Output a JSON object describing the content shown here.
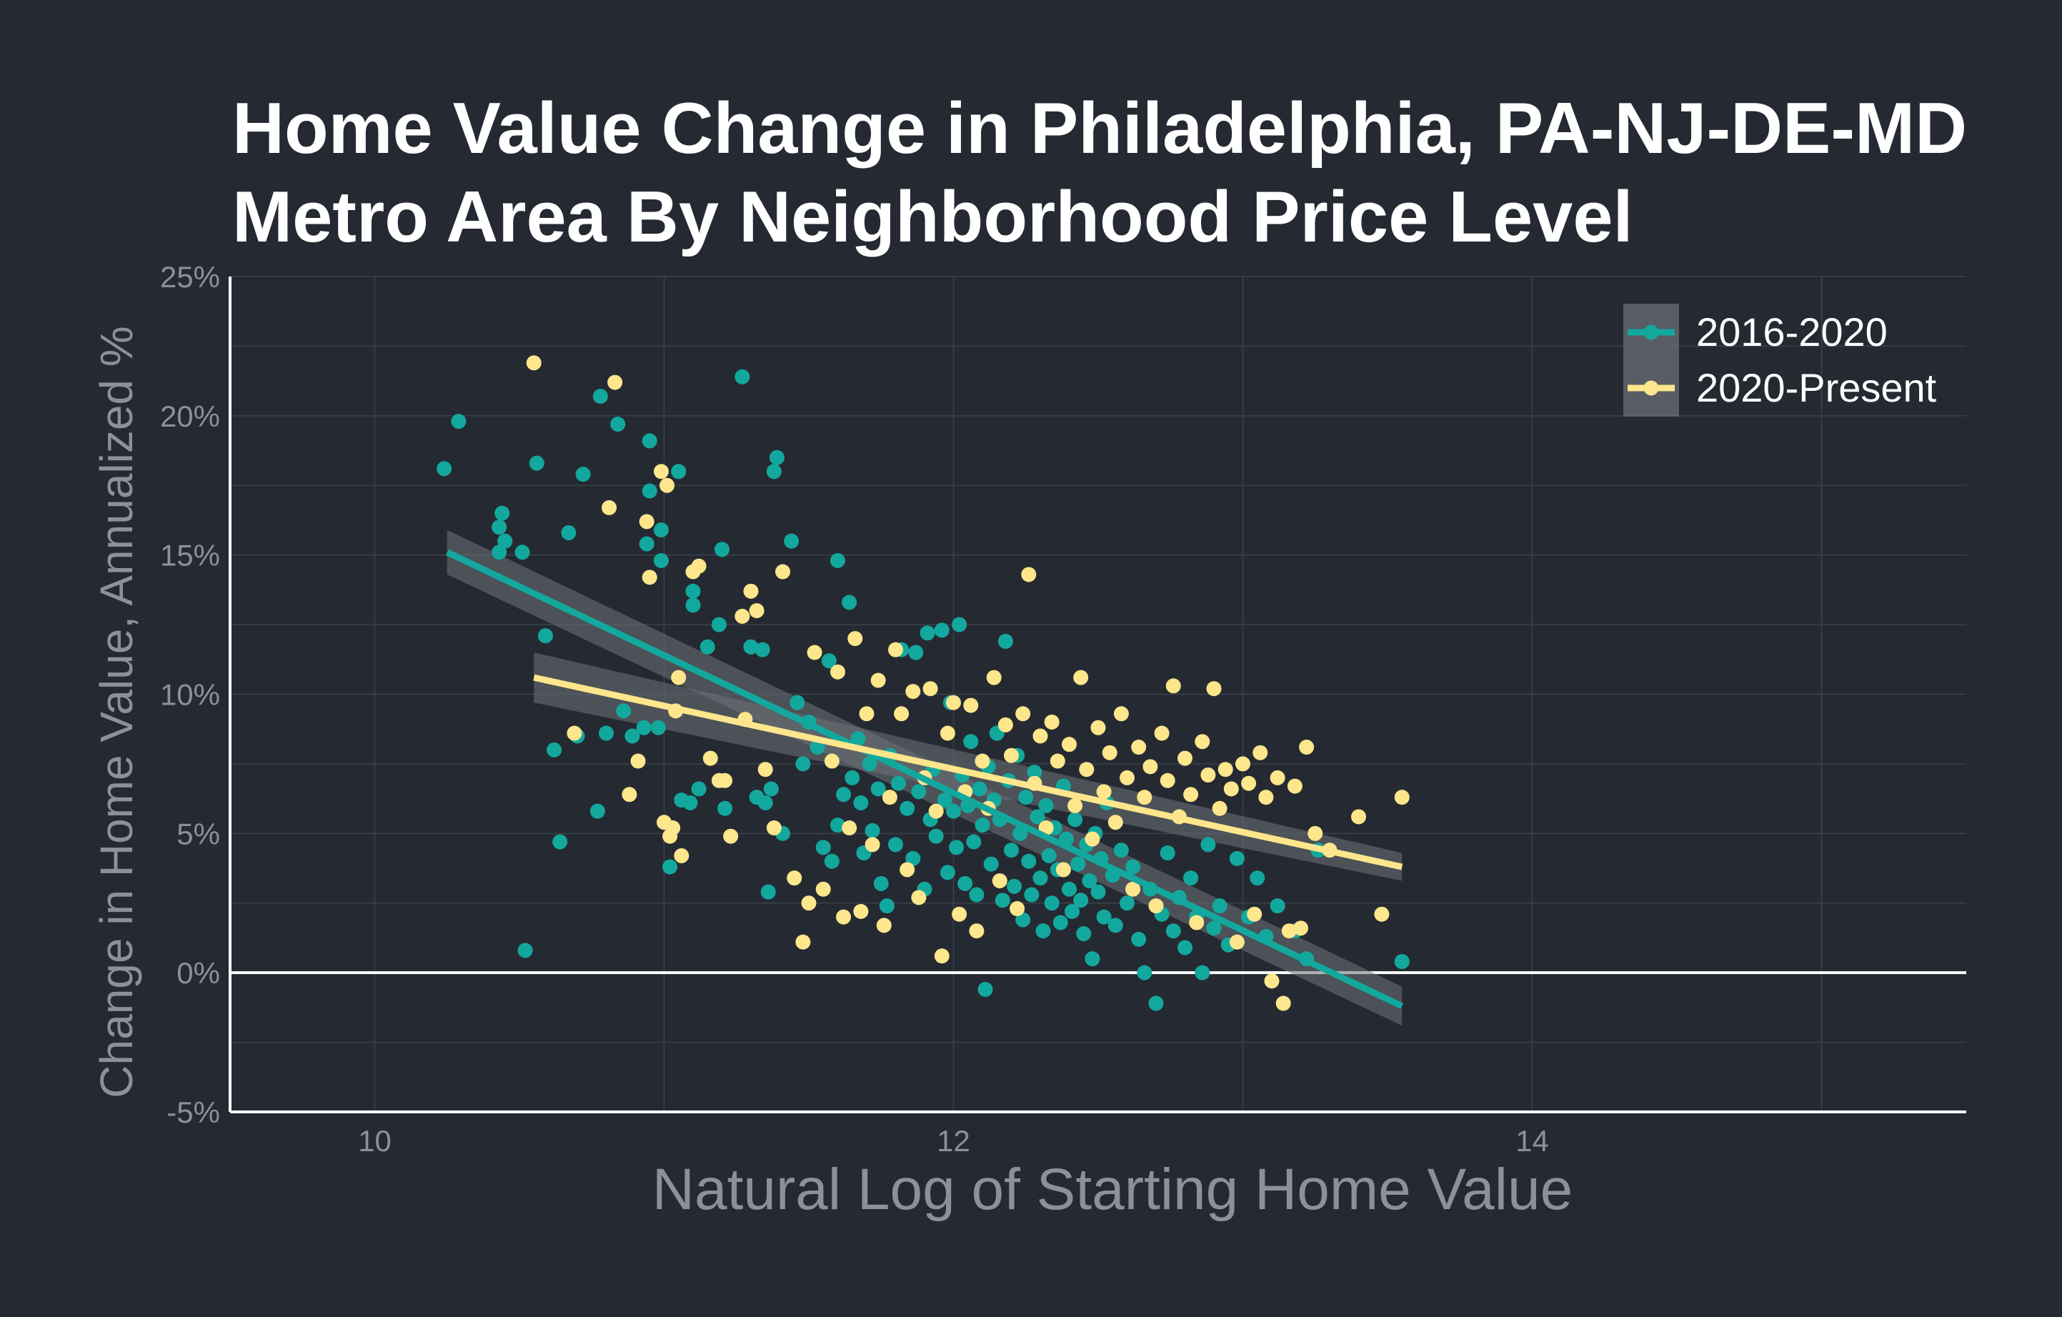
{
  "chart_data": {
    "type": "scatter",
    "title": [
      "Home Value Change in Philadelphia, PA-NJ-DE-MD",
      "Metro Area By Neighborhood Price Level"
    ],
    "xlabel": "Natural Log of Starting Home Value",
    "ylabel": "Change in Home Value, Annualized %",
    "xlim": [
      9.5,
      15.5
    ],
    "ylim": [
      -5,
      25
    ],
    "x_ticks": [
      10,
      12,
      14
    ],
    "x_tick_labels": [
      "10",
      "12",
      "14"
    ],
    "y_ticks": [
      -5,
      0,
      5,
      10,
      15,
      20,
      25
    ],
    "y_tick_labels": [
      "-5%",
      "0%",
      "5%",
      "10%",
      "15%",
      "20%",
      "25%"
    ],
    "grid": true,
    "legend_position": "top-right",
    "colors": {
      "background": "#252a32",
      "grid": "#3b414b",
      "axis": "#ffffff",
      "muted_text": "#8c9099",
      "band": "#6e7279"
    },
    "series": [
      {
        "name": "2016-2020",
        "color": "#13a89e",
        "trend": {
          "x": [
            10.25,
            13.55
          ],
          "y": [
            15.1,
            -1.2
          ],
          "ci_half_width": [
            0.8,
            0.7
          ]
        },
        "points": [
          [
            10.24,
            18.1
          ],
          [
            10.29,
            19.8
          ],
          [
            10.43,
            15.1
          ],
          [
            10.43,
            16.0
          ],
          [
            10.44,
            16.5
          ],
          [
            10.45,
            15.5
          ],
          [
            10.51,
            15.1
          ],
          [
            10.56,
            18.3
          ],
          [
            10.52,
            0.8
          ],
          [
            10.59,
            12.1
          ],
          [
            10.62,
            8.0
          ],
          [
            10.64,
            4.7
          ],
          [
            10.67,
            15.8
          ],
          [
            10.7,
            8.5
          ],
          [
            10.72,
            17.9
          ],
          [
            10.77,
            5.8
          ],
          [
            10.78,
            20.7
          ],
          [
            10.8,
            8.6
          ],
          [
            10.84,
            19.7
          ],
          [
            10.86,
            9.4
          ],
          [
            10.89,
            8.5
          ],
          [
            10.93,
            8.8
          ],
          [
            10.94,
            15.4
          ],
          [
            10.95,
            19.1
          ],
          [
            10.95,
            17.3
          ],
          [
            10.98,
            8.8
          ],
          [
            10.99,
            15.9
          ],
          [
            10.99,
            14.8
          ],
          [
            11.02,
            3.8
          ],
          [
            11.05,
            18.0
          ],
          [
            11.06,
            6.2
          ],
          [
            11.09,
            6.1
          ],
          [
            11.1,
            13.7
          ],
          [
            11.1,
            13.2
          ],
          [
            11.12,
            6.6
          ],
          [
            11.15,
            11.7
          ],
          [
            11.19,
            12.5
          ],
          [
            11.2,
            15.2
          ],
          [
            11.21,
            5.9
          ],
          [
            11.27,
            21.4
          ],
          [
            11.3,
            11.7
          ],
          [
            11.32,
            6.3
          ],
          [
            11.34,
            11.6
          ],
          [
            11.35,
            6.1
          ],
          [
            11.36,
            2.9
          ],
          [
            11.37,
            6.6
          ],
          [
            11.38,
            18.0
          ],
          [
            11.39,
            18.5
          ],
          [
            11.41,
            5.0
          ],
          [
            11.44,
            15.5
          ],
          [
            11.46,
            9.7
          ],
          [
            11.48,
            7.5
          ],
          [
            11.5,
            9.0
          ],
          [
            11.53,
            8.1
          ],
          [
            11.55,
            4.5
          ],
          [
            11.57,
            11.2
          ],
          [
            11.58,
            4.0
          ],
          [
            11.6,
            5.3
          ],
          [
            11.6,
            14.8
          ],
          [
            11.62,
            6.4
          ],
          [
            11.64,
            13.3
          ],
          [
            11.65,
            7.0
          ],
          [
            11.67,
            8.4
          ],
          [
            11.68,
            6.1
          ],
          [
            11.69,
            4.3
          ],
          [
            11.71,
            7.5
          ],
          [
            11.72,
            5.1
          ],
          [
            11.74,
            6.6
          ],
          [
            11.75,
            3.2
          ],
          [
            11.77,
            2.4
          ],
          [
            11.78,
            7.8
          ],
          [
            11.8,
            4.6
          ],
          [
            11.81,
            6.8
          ],
          [
            11.82,
            11.6
          ],
          [
            11.84,
            5.9
          ],
          [
            11.86,
            4.1
          ],
          [
            11.87,
            11.5
          ],
          [
            11.88,
            6.5
          ],
          [
            11.9,
            3.0
          ],
          [
            11.91,
            12.2
          ],
          [
            11.92,
            5.5
          ],
          [
            11.93,
            7.3
          ],
          [
            11.94,
            4.9
          ],
          [
            11.96,
            12.3
          ],
          [
            11.97,
            6.2
          ],
          [
            11.98,
            3.6
          ],
          [
            11.99,
            9.7
          ],
          [
            12.0,
            5.8
          ],
          [
            12.01,
            4.5
          ],
          [
            12.02,
            12.5
          ],
          [
            12.03,
            7.1
          ],
          [
            12.04,
            3.2
          ],
          [
            12.05,
            6.0
          ],
          [
            12.06,
            8.3
          ],
          [
            12.07,
            4.7
          ],
          [
            12.08,
            2.8
          ],
          [
            12.09,
            6.6
          ],
          [
            12.1,
            5.3
          ],
          [
            12.11,
            -0.6
          ],
          [
            12.12,
            7.4
          ],
          [
            12.13,
            3.9
          ],
          [
            12.14,
            6.2
          ],
          [
            12.15,
            8.6
          ],
          [
            12.16,
            5.5
          ],
          [
            12.17,
            2.6
          ],
          [
            12.18,
            11.9
          ],
          [
            12.19,
            6.9
          ],
          [
            12.2,
            4.4
          ],
          [
            12.21,
            3.1
          ],
          [
            12.22,
            7.8
          ],
          [
            12.23,
            5.0
          ],
          [
            12.24,
            1.9
          ],
          [
            12.25,
            6.3
          ],
          [
            12.26,
            4.0
          ],
          [
            12.27,
            2.8
          ],
          [
            12.28,
            7.2
          ],
          [
            12.29,
            5.6
          ],
          [
            12.3,
            3.4
          ],
          [
            12.31,
            1.5
          ],
          [
            12.32,
            6.0
          ],
          [
            12.33,
            4.2
          ],
          [
            12.34,
            2.5
          ],
          [
            12.35,
            5.2
          ],
          [
            12.36,
            3.7
          ],
          [
            12.37,
            1.8
          ],
          [
            12.38,
            6.7
          ],
          [
            12.39,
            4.8
          ],
          [
            12.4,
            3.0
          ],
          [
            12.41,
            2.2
          ],
          [
            12.42,
            5.5
          ],
          [
            12.43,
            3.9
          ],
          [
            12.44,
            2.6
          ],
          [
            12.45,
            1.4
          ],
          [
            12.46,
            4.6
          ],
          [
            12.47,
            3.3
          ],
          [
            12.48,
            0.5
          ],
          [
            12.49,
            5.0
          ],
          [
            12.5,
            2.9
          ],
          [
            12.51,
            4.1
          ],
          [
            12.52,
            2.0
          ],
          [
            12.53,
            6.1
          ],
          [
            12.55,
            3.5
          ],
          [
            12.56,
            1.7
          ],
          [
            12.58,
            4.4
          ],
          [
            12.6,
            2.5
          ],
          [
            12.62,
            3.8
          ],
          [
            12.64,
            1.2
          ],
          [
            12.66,
            0.0
          ],
          [
            12.68,
            3.0
          ],
          [
            12.7,
            -1.1
          ],
          [
            12.72,
            2.1
          ],
          [
            12.74,
            4.3
          ],
          [
            12.76,
            1.5
          ],
          [
            12.78,
            2.7
          ],
          [
            12.8,
            0.9
          ],
          [
            12.82,
            3.4
          ],
          [
            12.84,
            2.0
          ],
          [
            12.86,
            0.0
          ],
          [
            12.88,
            4.6
          ],
          [
            12.9,
            1.6
          ],
          [
            12.92,
            2.4
          ],
          [
            12.95,
            1.0
          ],
          [
            12.98,
            4.1
          ],
          [
            13.02,
            2.0
          ],
          [
            13.05,
            3.4
          ],
          [
            13.08,
            1.3
          ],
          [
            13.12,
            2.4
          ],
          [
            13.18,
            1.5
          ],
          [
            13.22,
            0.5
          ],
          [
            13.26,
            4.4
          ],
          [
            13.55,
            0.4
          ]
        ]
      },
      {
        "name": "2020-Present",
        "color": "#fde68b",
        "trend": {
          "x": [
            10.55,
            13.55
          ],
          "y": [
            10.6,
            3.8
          ],
          "ci_half_width": [
            0.9,
            0.5
          ]
        },
        "points": [
          [
            10.55,
            21.9
          ],
          [
            10.69,
            8.6
          ],
          [
            10.81,
            16.7
          ],
          [
            10.83,
            21.2
          ],
          [
            10.88,
            6.4
          ],
          [
            10.91,
            7.6
          ],
          [
            10.94,
            16.2
          ],
          [
            10.95,
            14.2
          ],
          [
            10.99,
            18.0
          ],
          [
            11.0,
            5.4
          ],
          [
            11.01,
            17.5
          ],
          [
            11.02,
            4.9
          ],
          [
            11.03,
            5.2
          ],
          [
            11.04,
            9.4
          ],
          [
            11.05,
            10.6
          ],
          [
            11.06,
            4.2
          ],
          [
            11.1,
            14.4
          ],
          [
            11.12,
            14.6
          ],
          [
            11.16,
            7.7
          ],
          [
            11.19,
            6.9
          ],
          [
            11.21,
            6.9
          ],
          [
            11.23,
            4.9
          ],
          [
            11.27,
            12.8
          ],
          [
            11.28,
            9.1
          ],
          [
            11.3,
            13.7
          ],
          [
            11.32,
            13.0
          ],
          [
            11.35,
            7.3
          ],
          [
            11.38,
            5.2
          ],
          [
            11.41,
            14.4
          ],
          [
            11.45,
            3.4
          ],
          [
            11.48,
            1.1
          ],
          [
            11.5,
            2.5
          ],
          [
            11.52,
            11.5
          ],
          [
            11.55,
            3.0
          ],
          [
            11.58,
            7.6
          ],
          [
            11.6,
            10.8
          ],
          [
            11.62,
            2.0
          ],
          [
            11.64,
            5.2
          ],
          [
            11.66,
            12.0
          ],
          [
            11.68,
            2.2
          ],
          [
            11.7,
            9.3
          ],
          [
            11.72,
            4.6
          ],
          [
            11.74,
            10.5
          ],
          [
            11.76,
            1.7
          ],
          [
            11.78,
            6.3
          ],
          [
            11.8,
            11.6
          ],
          [
            11.82,
            9.3
          ],
          [
            11.84,
            3.7
          ],
          [
            11.86,
            10.1
          ],
          [
            11.88,
            2.7
          ],
          [
            11.9,
            7.0
          ],
          [
            11.92,
            10.2
          ],
          [
            11.94,
            5.8
          ],
          [
            11.96,
            0.6
          ],
          [
            11.98,
            8.6
          ],
          [
            12.0,
            9.7
          ],
          [
            12.02,
            2.1
          ],
          [
            12.04,
            6.5
          ],
          [
            12.06,
            9.6
          ],
          [
            12.08,
            1.5
          ],
          [
            12.1,
            7.6
          ],
          [
            12.12,
            5.9
          ],
          [
            12.14,
            10.6
          ],
          [
            12.16,
            3.3
          ],
          [
            12.18,
            8.9
          ],
          [
            12.2,
            7.8
          ],
          [
            12.22,
            2.3
          ],
          [
            12.24,
            9.3
          ],
          [
            12.26,
            14.3
          ],
          [
            12.28,
            6.8
          ],
          [
            12.3,
            8.5
          ],
          [
            12.32,
            5.2
          ],
          [
            12.34,
            9.0
          ],
          [
            12.36,
            7.6
          ],
          [
            12.38,
            3.7
          ],
          [
            12.4,
            8.2
          ],
          [
            12.42,
            6.0
          ],
          [
            12.44,
            10.6
          ],
          [
            12.46,
            7.3
          ],
          [
            12.48,
            4.8
          ],
          [
            12.5,
            8.8
          ],
          [
            12.52,
            6.5
          ],
          [
            12.54,
            7.9
          ],
          [
            12.56,
            5.4
          ],
          [
            12.58,
            9.3
          ],
          [
            12.6,
            7.0
          ],
          [
            12.62,
            3.0
          ],
          [
            12.64,
            8.1
          ],
          [
            12.66,
            6.3
          ],
          [
            12.68,
            7.4
          ],
          [
            12.7,
            2.4
          ],
          [
            12.72,
            8.6
          ],
          [
            12.74,
            6.9
          ],
          [
            12.76,
            10.3
          ],
          [
            12.78,
            5.6
          ],
          [
            12.8,
            7.7
          ],
          [
            12.82,
            6.4
          ],
          [
            12.84,
            1.8
          ],
          [
            12.86,
            8.3
          ],
          [
            12.88,
            7.1
          ],
          [
            12.9,
            10.2
          ],
          [
            12.92,
            5.9
          ],
          [
            12.94,
            7.3
          ],
          [
            12.96,
            6.6
          ],
          [
            12.98,
            1.1
          ],
          [
            13.0,
            7.5
          ],
          [
            13.02,
            6.8
          ],
          [
            13.04,
            2.1
          ],
          [
            13.06,
            7.9
          ],
          [
            13.08,
            6.3
          ],
          [
            13.1,
            -0.3
          ],
          [
            13.12,
            7.0
          ],
          [
            13.14,
            -1.1
          ],
          [
            13.16,
            1.5
          ],
          [
            13.18,
            6.7
          ],
          [
            13.2,
            1.6
          ],
          [
            13.22,
            8.1
          ],
          [
            13.25,
            5.0
          ],
          [
            13.3,
            4.4
          ],
          [
            13.4,
            5.6
          ],
          [
            13.48,
            2.1
          ],
          [
            13.55,
            6.3
          ]
        ]
      }
    ]
  }
}
